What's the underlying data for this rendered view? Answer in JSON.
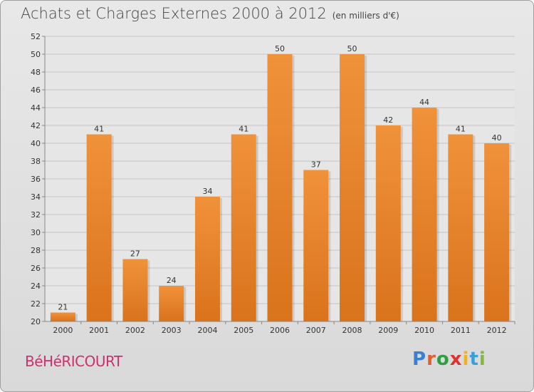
{
  "title": "Achats et Charges Externes 2000 à 2012",
  "subtitle": "(en milliers d'€)",
  "commune": "BéHéRICOURT",
  "logo": {
    "letters": [
      "P",
      "r",
      "o",
      "x",
      "i",
      "t",
      "i"
    ],
    "colors": [
      "#3a7fd0",
      "#e65c2b",
      "#2e9e3e",
      "#e0312e",
      "#f2b21a",
      "#3aa0d8",
      "#86b83a"
    ]
  },
  "colors": {
    "bar": "#f0923a",
    "bar_dark": "#d9731c"
  },
  "chart_data": {
    "type": "bar",
    "title": "Achats et Charges Externes 2000 à 2012",
    "subtitle": "(en milliers d'€)",
    "categories": [
      "2000",
      "2001",
      "2002",
      "2003",
      "2004",
      "2005",
      "2006",
      "2007",
      "2008",
      "2009",
      "2010",
      "2011",
      "2012"
    ],
    "values": [
      21,
      41,
      27,
      24,
      34,
      41,
      50,
      37,
      50,
      42,
      44,
      41,
      40
    ],
    "ylim": [
      20,
      52
    ],
    "yticks": [
      20,
      22,
      24,
      26,
      28,
      30,
      32,
      34,
      36,
      38,
      40,
      42,
      44,
      46,
      48,
      50,
      52
    ],
    "grid": true,
    "xlabel": "",
    "ylabel": ""
  }
}
